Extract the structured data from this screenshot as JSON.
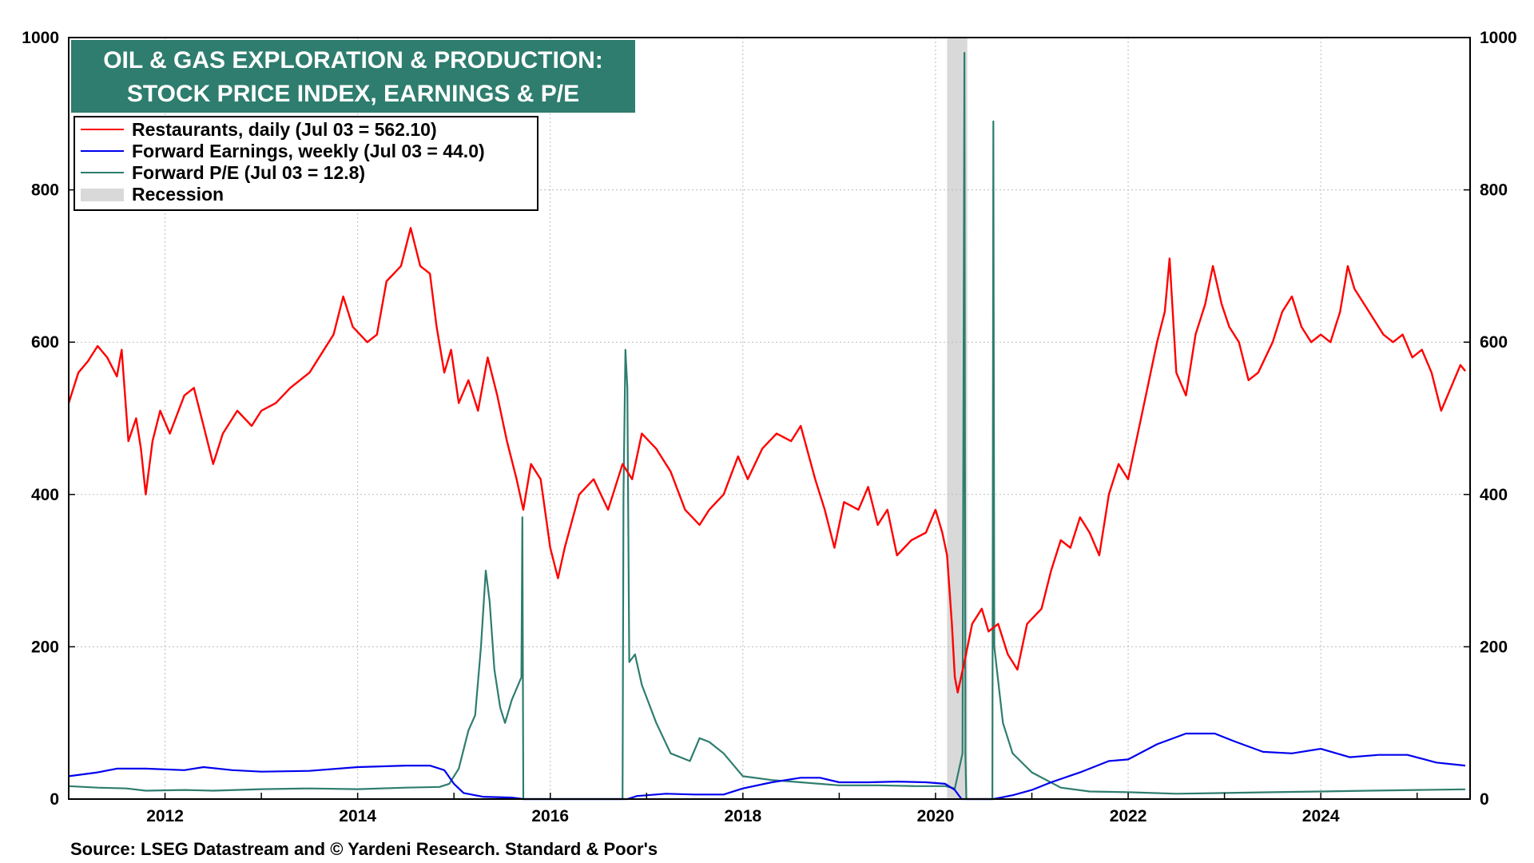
{
  "chart_data": {
    "type": "line",
    "title_lines": [
      "OIL & GAS EXPLORATION & PRODUCTION:",
      "STOCK PRICE INDEX, EARNINGS & P/E"
    ],
    "source": "Source: LSEG Datastream and © Yardeni Research. Standard & Poor's",
    "xlim": [
      2011.0,
      2025.55
    ],
    "ylim": [
      0,
      1000
    ],
    "y_ticks": [
      "0",
      "200",
      "400",
      "600",
      "800",
      "1000"
    ],
    "x_ticks": [
      "2012",
      "2014",
      "2016",
      "2018",
      "2020",
      "2022",
      "2024"
    ],
    "grid": true,
    "legend_position": "top-left",
    "legend": [
      {
        "label": "Restaurants, daily (Jul 03 = 562.10)",
        "color": "#ff0000",
        "kind": "line"
      },
      {
        "label": "Forward Earnings, weekly (Jul 03 = 44.0)",
        "color": "#0000ee",
        "kind": "line"
      },
      {
        "label": "Forward P/E (Jul 03 = 12.8)",
        "color": "#2e7d6e",
        "kind": "line"
      },
      {
        "label": "Recession",
        "color": "#d9d9d9",
        "kind": "box"
      }
    ],
    "recession": {
      "start": 2020.12,
      "end": 2020.33
    },
    "series": [
      {
        "name": "Restaurants, daily (Jul 03 = 562.10)",
        "color": "#ff0000",
        "points": [
          [
            2011.0,
            520
          ],
          [
            2011.1,
            560
          ],
          [
            2011.2,
            575
          ],
          [
            2011.3,
            595
          ],
          [
            2011.4,
            580
          ],
          [
            2011.5,
            555
          ],
          [
            2011.55,
            590
          ],
          [
            2011.62,
            470
          ],
          [
            2011.7,
            500
          ],
          [
            2011.75,
            460
          ],
          [
            2011.8,
            400
          ],
          [
            2011.87,
            470
          ],
          [
            2011.95,
            510
          ],
          [
            2012.05,
            480
          ],
          [
            2012.2,
            530
          ],
          [
            2012.3,
            540
          ],
          [
            2012.4,
            490
          ],
          [
            2012.5,
            440
          ],
          [
            2012.6,
            480
          ],
          [
            2012.75,
            510
          ],
          [
            2012.9,
            490
          ],
          [
            2013.0,
            510
          ],
          [
            2013.15,
            520
          ],
          [
            2013.3,
            540
          ],
          [
            2013.5,
            560
          ],
          [
            2013.6,
            580
          ],
          [
            2013.75,
            610
          ],
          [
            2013.85,
            660
          ],
          [
            2013.95,
            620
          ],
          [
            2014.1,
            600
          ],
          [
            2014.2,
            610
          ],
          [
            2014.3,
            680
          ],
          [
            2014.45,
            700
          ],
          [
            2014.55,
            750
          ],
          [
            2014.65,
            700
          ],
          [
            2014.75,
            690
          ],
          [
            2014.82,
            620
          ],
          [
            2014.9,
            560
          ],
          [
            2014.97,
            590
          ],
          [
            2015.05,
            520
          ],
          [
            2015.15,
            550
          ],
          [
            2015.25,
            510
          ],
          [
            2015.35,
            580
          ],
          [
            2015.45,
            530
          ],
          [
            2015.55,
            470
          ],
          [
            2015.65,
            420
          ],
          [
            2015.72,
            380
          ],
          [
            2015.8,
            440
          ],
          [
            2015.9,
            420
          ],
          [
            2016.0,
            330
          ],
          [
            2016.08,
            290
          ],
          [
            2016.15,
            330
          ],
          [
            2016.3,
            400
          ],
          [
            2016.45,
            420
          ],
          [
            2016.6,
            380
          ],
          [
            2016.75,
            440
          ],
          [
            2016.85,
            420
          ],
          [
            2016.95,
            480
          ],
          [
            2017.1,
            460
          ],
          [
            2017.25,
            430
          ],
          [
            2017.4,
            380
          ],
          [
            2017.55,
            360
          ],
          [
            2017.65,
            380
          ],
          [
            2017.8,
            400
          ],
          [
            2017.95,
            450
          ],
          [
            2018.05,
            420
          ],
          [
            2018.2,
            460
          ],
          [
            2018.35,
            480
          ],
          [
            2018.5,
            470
          ],
          [
            2018.6,
            490
          ],
          [
            2018.75,
            420
          ],
          [
            2018.85,
            380
          ],
          [
            2018.95,
            330
          ],
          [
            2019.05,
            390
          ],
          [
            2019.2,
            380
          ],
          [
            2019.3,
            410
          ],
          [
            2019.4,
            360
          ],
          [
            2019.5,
            380
          ],
          [
            2019.6,
            320
          ],
          [
            2019.75,
            340
          ],
          [
            2019.9,
            350
          ],
          [
            2020.0,
            380
          ],
          [
            2020.07,
            350
          ],
          [
            2020.12,
            320
          ],
          [
            2020.17,
            230
          ],
          [
            2020.2,
            160
          ],
          [
            2020.23,
            140
          ],
          [
            2020.3,
            180
          ],
          [
            2020.38,
            230
          ],
          [
            2020.48,
            250
          ],
          [
            2020.55,
            220
          ],
          [
            2020.65,
            230
          ],
          [
            2020.75,
            190
          ],
          [
            2020.85,
            170
          ],
          [
            2020.95,
            230
          ],
          [
            2021.1,
            250
          ],
          [
            2021.2,
            300
          ],
          [
            2021.3,
            340
          ],
          [
            2021.4,
            330
          ],
          [
            2021.5,
            370
          ],
          [
            2021.6,
            350
          ],
          [
            2021.7,
            320
          ],
          [
            2021.8,
            400
          ],
          [
            2021.9,
            440
          ],
          [
            2022.0,
            420
          ],
          [
            2022.1,
            480
          ],
          [
            2022.2,
            540
          ],
          [
            2022.3,
            600
          ],
          [
            2022.38,
            640
          ],
          [
            2022.43,
            710
          ],
          [
            2022.5,
            560
          ],
          [
            2022.6,
            530
          ],
          [
            2022.7,
            610
          ],
          [
            2022.8,
            650
          ],
          [
            2022.88,
            700
          ],
          [
            2022.97,
            650
          ],
          [
            2023.05,
            620
          ],
          [
            2023.15,
            600
          ],
          [
            2023.25,
            550
          ],
          [
            2023.35,
            560
          ],
          [
            2023.5,
            600
          ],
          [
            2023.6,
            640
          ],
          [
            2023.7,
            660
          ],
          [
            2023.8,
            620
          ],
          [
            2023.9,
            600
          ],
          [
            2024.0,
            610
          ],
          [
            2024.1,
            600
          ],
          [
            2024.2,
            640
          ],
          [
            2024.28,
            700
          ],
          [
            2024.35,
            670
          ],
          [
            2024.45,
            650
          ],
          [
            2024.55,
            630
          ],
          [
            2024.65,
            610
          ],
          [
            2024.75,
            600
          ],
          [
            2024.85,
            610
          ],
          [
            2024.95,
            580
          ],
          [
            2025.05,
            590
          ],
          [
            2025.15,
            560
          ],
          [
            2025.25,
            510
          ],
          [
            2025.35,
            540
          ],
          [
            2025.45,
            570
          ],
          [
            2025.5,
            562
          ]
        ]
      },
      {
        "name": "Forward Earnings, weekly (Jul 03 = 44.0)",
        "color": "#0000ee",
        "points": [
          [
            2011.0,
            30
          ],
          [
            2011.3,
            35
          ],
          [
            2011.5,
            40
          ],
          [
            2011.8,
            40
          ],
          [
            2012.2,
            38
          ],
          [
            2012.4,
            42
          ],
          [
            2012.7,
            38
          ],
          [
            2013.0,
            36
          ],
          [
            2013.5,
            37
          ],
          [
            2014.0,
            42
          ],
          [
            2014.5,
            44
          ],
          [
            2014.75,
            44
          ],
          [
            2014.9,
            38
          ],
          [
            2015.0,
            20
          ],
          [
            2015.1,
            8
          ],
          [
            2015.3,
            3
          ],
          [
            2015.6,
            2
          ],
          [
            2015.72,
            0
          ],
          [
            2016.8,
            0
          ],
          [
            2016.9,
            4
          ],
          [
            2017.2,
            7
          ],
          [
            2017.5,
            6
          ],
          [
            2017.8,
            6
          ],
          [
            2018.0,
            14
          ],
          [
            2018.3,
            22
          ],
          [
            2018.6,
            28
          ],
          [
            2018.8,
            28
          ],
          [
            2019.0,
            22
          ],
          [
            2019.3,
            22
          ],
          [
            2019.6,
            23
          ],
          [
            2019.9,
            22
          ],
          [
            2020.1,
            20
          ],
          [
            2020.2,
            12
          ],
          [
            2020.27,
            0
          ],
          [
            2020.6,
            0
          ],
          [
            2020.8,
            5
          ],
          [
            2021.0,
            12
          ],
          [
            2021.2,
            22
          ],
          [
            2021.5,
            35
          ],
          [
            2021.8,
            50
          ],
          [
            2022.0,
            52
          ],
          [
            2022.3,
            72
          ],
          [
            2022.6,
            86
          ],
          [
            2022.9,
            86
          ],
          [
            2023.1,
            76
          ],
          [
            2023.4,
            62
          ],
          [
            2023.7,
            60
          ],
          [
            2024.0,
            66
          ],
          [
            2024.3,
            55
          ],
          [
            2024.6,
            58
          ],
          [
            2024.9,
            58
          ],
          [
            2025.2,
            48
          ],
          [
            2025.5,
            44
          ]
        ]
      },
      {
        "name": "Forward P/E (Jul 03 = 12.8)",
        "color": "#2e7d6e",
        "points": [
          [
            2011.0,
            17
          ],
          [
            2011.3,
            15
          ],
          [
            2011.6,
            14
          ],
          [
            2011.8,
            11
          ],
          [
            2012.2,
            12
          ],
          [
            2012.5,
            11
          ],
          [
            2013.0,
            13
          ],
          [
            2013.5,
            14
          ],
          [
            2014.0,
            13
          ],
          [
            2014.5,
            15
          ],
          [
            2014.85,
            16
          ],
          [
            2014.95,
            20
          ],
          [
            2015.05,
            40
          ],
          [
            2015.15,
            90
          ],
          [
            2015.22,
            110
          ],
          [
            2015.28,
            200
          ],
          [
            2015.33,
            300
          ],
          [
            2015.37,
            260
          ],
          [
            2015.42,
            170
          ],
          [
            2015.48,
            120
          ],
          [
            2015.53,
            100
          ],
          [
            2015.6,
            130
          ],
          [
            2015.7,
            160
          ],
          [
            2015.71,
            370
          ],
          [
            2015.72,
            0
          ],
          [
            2016.75,
            0
          ],
          [
            2016.76,
            400
          ],
          [
            2016.78,
            590
          ],
          [
            2016.8,
            540
          ],
          [
            2016.82,
            180
          ],
          [
            2016.88,
            190
          ],
          [
            2016.95,
            150
          ],
          [
            2017.1,
            100
          ],
          [
            2017.25,
            60
          ],
          [
            2017.45,
            50
          ],
          [
            2017.55,
            80
          ],
          [
            2017.65,
            75
          ],
          [
            2017.8,
            60
          ],
          [
            2018.0,
            30
          ],
          [
            2018.3,
            25
          ],
          [
            2018.6,
            22
          ],
          [
            2019.0,
            18
          ],
          [
            2019.4,
            18
          ],
          [
            2019.8,
            17
          ],
          [
            2020.1,
            17
          ],
          [
            2020.2,
            14
          ],
          [
            2020.28,
            60
          ],
          [
            2020.3,
            980
          ],
          [
            2020.31,
            60
          ],
          [
            2020.32,
            0
          ],
          [
            2020.59,
            0
          ],
          [
            2020.6,
            890
          ],
          [
            2020.61,
            200
          ],
          [
            2020.7,
            100
          ],
          [
            2020.8,
            60
          ],
          [
            2021.0,
            35
          ],
          [
            2021.3,
            15
          ],
          [
            2021.6,
            10
          ],
          [
            2022.0,
            9
          ],
          [
            2022.5,
            7
          ],
          [
            2023.0,
            8
          ],
          [
            2023.5,
            9
          ],
          [
            2024.0,
            10
          ],
          [
            2024.5,
            11
          ],
          [
            2025.0,
            12
          ],
          [
            2025.5,
            12.8
          ]
        ]
      }
    ]
  }
}
